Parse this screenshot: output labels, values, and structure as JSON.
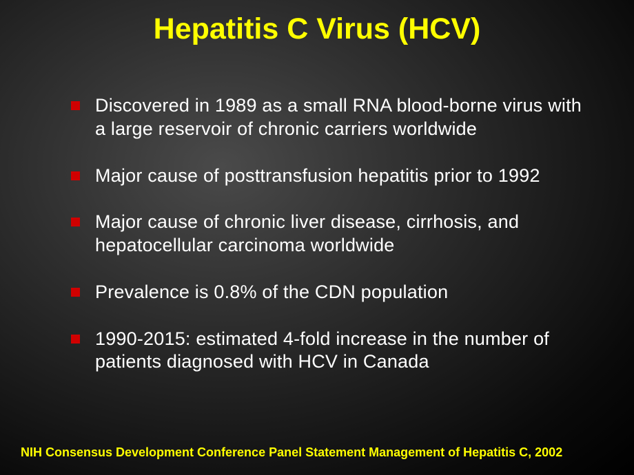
{
  "slide": {
    "title": "Hepatitis C Virus (HCV)",
    "title_color": "#ffff00",
    "title_fontsize": 43,
    "background_gradient": {
      "type": "radial",
      "center": "35% 35%",
      "stops": [
        "#4a4a4a",
        "#2a2a2a",
        "#0a0a0a",
        "#000000"
      ]
    },
    "bullets": [
      "Discovered in 1989 as a small RNA blood-borne virus with a large reservoir of chronic carriers worldwide",
      "Major cause of posttransfusion hepatitis prior to 1992",
      "Major cause of chronic liver disease, cirrhosis, and hepatocellular carcinoma worldwide",
      "Prevalence is 0.8% of the CDN population",
      "1990-2015: estimated 4-fold increase in the number of patients diagnosed with HCV in Canada"
    ],
    "bullet_marker_color": "#d00000",
    "bullet_marker_size": 13,
    "bullet_text_color": "#ffffff",
    "bullet_fontsize": 27,
    "footer": "NIH Consensus Development Conference Panel Statement Management of Hepatitis C, 2002",
    "footer_color": "#ffff00",
    "footer_fontsize": 18
  }
}
